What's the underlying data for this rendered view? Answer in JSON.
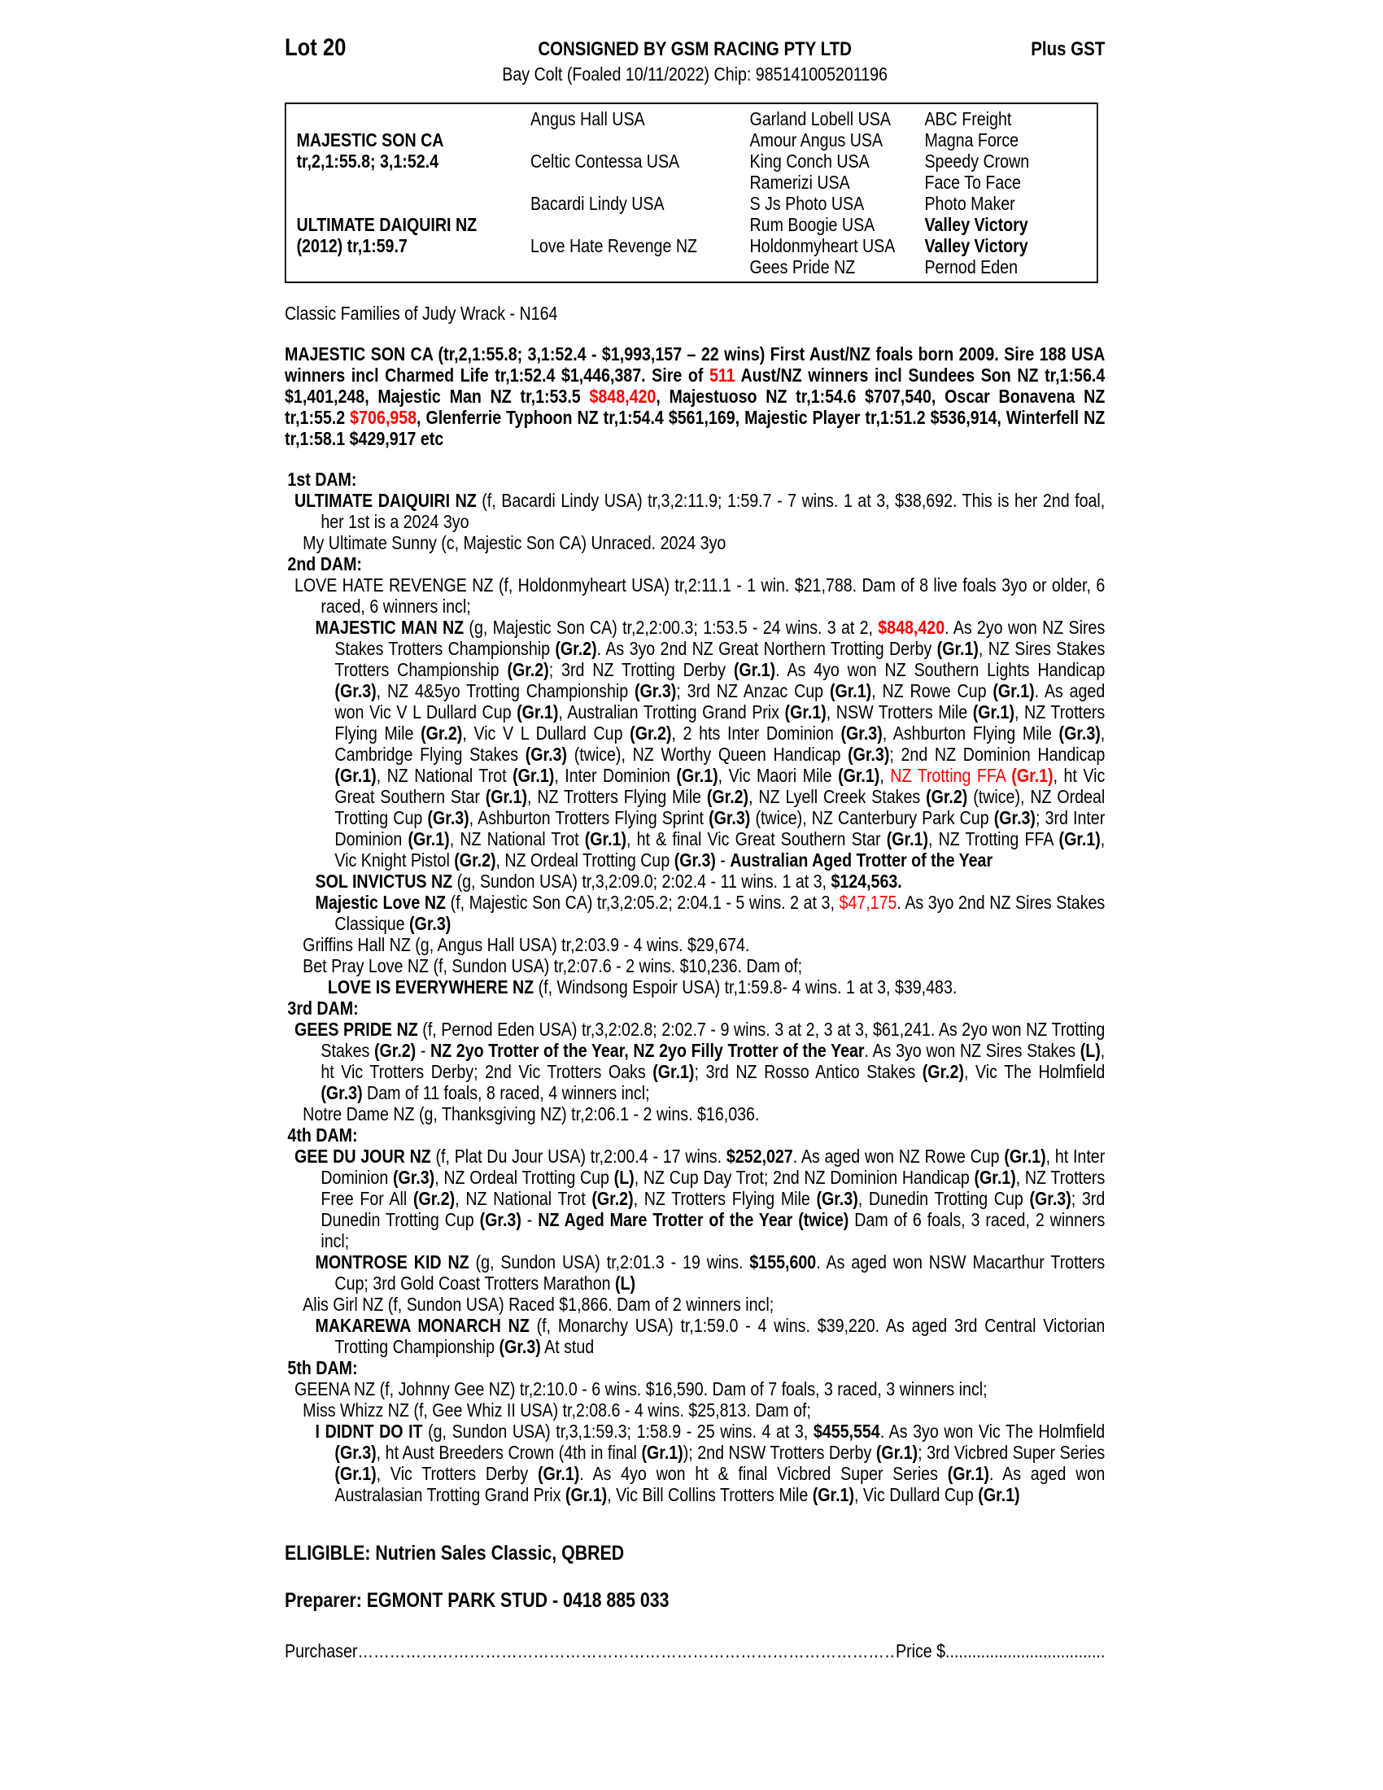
{
  "colors": {
    "accent_red": "#ff0000",
    "text": "#000000",
    "background": "#ffffff"
  },
  "page": {
    "lot": "Lot 20",
    "consigned": "CONSIGNED BY GSM RACING PTY LTD",
    "gst": "Plus GST",
    "subtitle": "Bay Colt (Foaled 10/11/2022) Chip: 985141005201196",
    "eligible": "ELIGIBLE: Nutrien Sales Classic, QBRED",
    "preparer": "Preparer: EGMONT PARK STUD - 0418 885 033",
    "purchaser_label": "Purchaser",
    "purchaser_dots": "……………………………………………………………………………………………………………………",
    "price_label": "Price $",
    "price_dots": "........................................................................"
  },
  "pedigree_table": {
    "rows": [
      {
        "c1": "",
        "b1": false,
        "c2": "Angus Hall USA",
        "c3": "Garland Lobell USA",
        "c4": "ABC Freight",
        "b4": false
      },
      {
        "c1": "MAJESTIC SON CA",
        "b1": true,
        "c2": "",
        "c3": "Amour Angus USA",
        "c4": "Magna Force",
        "b4": false
      },
      {
        "c1": "tr,2,1:55.8; 3,1:52.4",
        "b1": true,
        "c2": "Celtic Contessa USA",
        "c3": "King Conch USA",
        "c4": "Speedy Crown",
        "b4": false
      },
      {
        "c1": "",
        "b1": false,
        "c2": "",
        "c3": "Ramerizi USA",
        "c4": "Face To Face",
        "b4": false
      },
      {
        "c1": "",
        "b1": false,
        "c2": "Bacardi Lindy USA",
        "c3": "S Js Photo USA",
        "c4": "Photo Maker",
        "b4": false
      },
      {
        "c1": "ULTIMATE DAIQUIRI NZ",
        "b1": true,
        "c2": "",
        "c3": "Rum Boogie USA",
        "c4": "Valley Victory",
        "b4": true
      },
      {
        "c1": "(2012) tr,1:59.7",
        "b1": true,
        "c2": "Love Hate Revenge NZ",
        "c3": "Holdonmyheart USA",
        "c4": "Valley Victory",
        "b4": true
      },
      {
        "c1": "",
        "b1": false,
        "c2": "",
        "c3": "Gees Pride NZ",
        "c4": "Pernod Eden",
        "b4": false
      }
    ]
  },
  "paragraphs": [
    {
      "name": "family-line",
      "level": "p0",
      "gap": true,
      "segments": [
        [
          "Classic Families of Judy Wrack - N164",
          "n"
        ]
      ]
    },
    {
      "name": "sire-summary",
      "level": "p0",
      "gap": true,
      "segments": [
        [
          "MAJESTIC SON CA (tr,2,1:55.8; 3,1:52.4 - $1,993,157 – 22 wins) First Aust/NZ foals born 2009. Sire 188 USA winners incl Charmed Life tr,1:52.4 $1,446,387. Sire of ",
          "b"
        ],
        [
          "511",
          "br"
        ],
        [
          " Aust/NZ winners incl Sundees Son NZ tr,1:56.4 $1,401,248, Majestic Man NZ tr,1:53.5 ",
          "b"
        ],
        [
          "$848,420",
          "br"
        ],
        [
          ", Majestuoso NZ tr,1:54.6 $707,540, Oscar Bonavena NZ tr,1:55.2 ",
          "b"
        ],
        [
          "$706,958",
          "br"
        ],
        [
          ", Glenferrie Typhoon NZ tr,1:54.4 $561,169, Majestic Player tr,1:51.2 $536,914, Winterfell NZ tr,1:58.1 $429,917 etc",
          "b"
        ]
      ]
    },
    {
      "name": "heading-1st-dam",
      "level": "h",
      "gap": true,
      "segments": [
        [
          "1st DAM:",
          "b"
        ]
      ]
    },
    {
      "name": "ultimate-daiquiri",
      "level": "lv0",
      "gap": false,
      "segments": [
        [
          "ULTIMATE DAIQUIRI NZ",
          "b"
        ],
        [
          " (f, Bacardi Lindy USA) tr,3,2:11.9; 1:59.7 - 7 wins. 1 at 3, $38,692. This is her 2nd foal, her 1st is a 2024 3yo",
          "n"
        ]
      ]
    },
    {
      "name": "my-ultimate-sunny",
      "level": "lv1",
      "gap": false,
      "segments": [
        [
          "My Ultimate Sunny (c, Majestic Son CA) Unraced. 2024 3yo",
          "n"
        ]
      ]
    },
    {
      "name": "heading-2nd-dam",
      "level": "h",
      "gap": false,
      "segments": [
        [
          "2nd DAM:",
          "b"
        ]
      ]
    },
    {
      "name": "love-hate-revenge",
      "level": "lv0",
      "gap": false,
      "segments": [
        [
          "LOVE HATE REVENGE NZ (f, Holdonmyheart USA) tr,2:11.1 - 1 win. $21,788. Dam of 8 live foals 3yo or older, 6 raced, 6 winners incl;",
          "n"
        ]
      ]
    },
    {
      "name": "majestic-man",
      "level": "lv2",
      "gap": false,
      "segments": [
        [
          "MAJESTIC MAN NZ",
          "b"
        ],
        [
          " (g, Majestic Son CA) tr,2,2:00.3; 1:53.5 - 24 wins. 3 at 2, ",
          "n"
        ],
        [
          "$848,420",
          "br"
        ],
        [
          ". As 2yo won NZ Sires Stakes Trotters Championship ",
          "n"
        ],
        [
          "(Gr.2)",
          "b"
        ],
        [
          ". As 3yo 2nd NZ Great Northern Trotting Derby ",
          "n"
        ],
        [
          "(Gr.1)",
          "b"
        ],
        [
          ", NZ Sires Stakes Trotters Championship ",
          "n"
        ],
        [
          "(Gr.2)",
          "b"
        ],
        [
          "; 3rd NZ Trotting Derby ",
          "n"
        ],
        [
          "(Gr.1)",
          "b"
        ],
        [
          ". As 4yo won NZ Southern Lights Handicap ",
          "n"
        ],
        [
          "(Gr.3)",
          "b"
        ],
        [
          ", NZ 4&5yo Trotting Championship ",
          "n"
        ],
        [
          "(Gr.3)",
          "b"
        ],
        [
          "; 3rd NZ Anzac Cup ",
          "n"
        ],
        [
          "(Gr.1)",
          "b"
        ],
        [
          ", NZ Rowe Cup ",
          "n"
        ],
        [
          "(Gr.1)",
          "b"
        ],
        [
          ". As aged won Vic V L Dullard Cup ",
          "n"
        ],
        [
          "(Gr.1)",
          "b"
        ],
        [
          ", Australian Trotting Grand Prix ",
          "n"
        ],
        [
          "(Gr.1)",
          "b"
        ],
        [
          ", NSW Trotters Mile ",
          "n"
        ],
        [
          "(Gr.1)",
          "b"
        ],
        [
          ", NZ Trotters Flying Mile ",
          "n"
        ],
        [
          "(Gr.2)",
          "b"
        ],
        [
          ", Vic V L Dullard Cup ",
          "n"
        ],
        [
          "(Gr.2)",
          "b"
        ],
        [
          ", 2 hts Inter Dominion ",
          "n"
        ],
        [
          "(Gr.3)",
          "b"
        ],
        [
          ", Ashburton Flying Mile ",
          "n"
        ],
        [
          "(Gr.3)",
          "b"
        ],
        [
          ", Cambridge Flying Stakes ",
          "n"
        ],
        [
          "(Gr.3)",
          "b"
        ],
        [
          " (twice), NZ Worthy Queen Handicap ",
          "n"
        ],
        [
          "(Gr.3)",
          "b"
        ],
        [
          "; 2nd NZ Dominion Handicap ",
          "n"
        ],
        [
          "(Gr.1)",
          "b"
        ],
        [
          ", NZ National Trot ",
          "n"
        ],
        [
          "(Gr.1)",
          "b"
        ],
        [
          ", Inter Dominion ",
          "n"
        ],
        [
          "(Gr.1)",
          "b"
        ],
        [
          ", Vic Maori Mile ",
          "n"
        ],
        [
          "(Gr.1)",
          "b"
        ],
        [
          ", ",
          "n"
        ],
        [
          "NZ Trotting FFA ",
          "r"
        ],
        [
          "(Gr.1)",
          "br"
        ],
        [
          ", ht Vic Great Southern Star ",
          "n"
        ],
        [
          "(Gr.1)",
          "b"
        ],
        [
          ", NZ Trotters Flying Mile ",
          "n"
        ],
        [
          "(Gr.2)",
          "b"
        ],
        [
          ", NZ Lyell Creek Stakes ",
          "n"
        ],
        [
          "(Gr.2)",
          "b"
        ],
        [
          " (twice), NZ Ordeal Trotting Cup ",
          "n"
        ],
        [
          "(Gr.3)",
          "b"
        ],
        [
          ", Ashburton Trotters Flying Sprint ",
          "n"
        ],
        [
          "(Gr.3)",
          "b"
        ],
        [
          " (twice), NZ Canterbury Park Cup ",
          "n"
        ],
        [
          "(Gr.3)",
          "b"
        ],
        [
          "; 3rd Inter Dominion ",
          "n"
        ],
        [
          "(Gr.1)",
          "b"
        ],
        [
          ", NZ National Trot ",
          "n"
        ],
        [
          "(Gr.1)",
          "b"
        ],
        [
          ", ht & final Vic Great Southern Star ",
          "n"
        ],
        [
          "(Gr.1)",
          "b"
        ],
        [
          ", NZ Trotting FFA ",
          "n"
        ],
        [
          "(Gr.1)",
          "b"
        ],
        [
          ", Vic Knight Pistol ",
          "n"
        ],
        [
          "(Gr.2)",
          "b"
        ],
        [
          ", NZ Ordeal Trotting Cup ",
          "n"
        ],
        [
          "(Gr.3)",
          "b"
        ],
        [
          " - ",
          "n"
        ],
        [
          "Australian Aged Trotter of the Year",
          "b"
        ]
      ]
    },
    {
      "name": "sol-invictus",
      "level": "lv2",
      "gap": false,
      "segments": [
        [
          "SOL INVICTUS NZ",
          "b"
        ],
        [
          " (g, Sundon USA) tr,3,2:09.0; 2:02.4 - 11 wins. 1 at 3, ",
          "n"
        ],
        [
          "$124,563.",
          "b"
        ]
      ]
    },
    {
      "name": "majestic-love",
      "level": "lv2",
      "gap": false,
      "segments": [
        [
          "Majestic Love NZ",
          "b"
        ],
        [
          " (f, Majestic Son CA) tr,3,2:05.2; 2:04.1 - 5 wins. 2 at 3, ",
          "n"
        ],
        [
          "$47,175",
          "r"
        ],
        [
          ". As 3yo 2nd NZ Sires Stakes Classique ",
          "n"
        ],
        [
          "(Gr.3)",
          "b"
        ]
      ]
    },
    {
      "name": "griffins-hall",
      "level": "lv1",
      "gap": false,
      "segments": [
        [
          "Griffins Hall NZ (g, Angus Hall USA) tr,2:03.9 - 4 wins. $29,674.",
          "n"
        ]
      ]
    },
    {
      "name": "bet-pray-love",
      "level": "lv1",
      "gap": false,
      "segments": [
        [
          "Bet Pray Love NZ (f, Sundon USA) tr,2:07.6 - 2 wins. $10,236. Dam of;",
          "n"
        ]
      ]
    },
    {
      "name": "love-is-everywhere",
      "level": "lv3",
      "gap": false,
      "segments": [
        [
          "LOVE IS EVERYWHERE NZ",
          "b"
        ],
        [
          " (f, Windsong Espoir USA) tr,1:59.8- 4 wins. 1 at 3, $39,483.",
          "n"
        ]
      ]
    },
    {
      "name": "heading-3rd-dam",
      "level": "h",
      "gap": false,
      "segments": [
        [
          "3rd DAM:",
          "b"
        ]
      ]
    },
    {
      "name": "gees-pride",
      "level": "lv0",
      "gap": false,
      "segments": [
        [
          "GEES PRIDE NZ",
          "b"
        ],
        [
          " (f, Pernod Eden USA) tr,3,2:02.8; 2:02.7 - 9 wins. 3 at 2, 3 at 3, $61,241. As 2yo won NZ Trotting Stakes ",
          "n"
        ],
        [
          "(Gr.2)",
          "b"
        ],
        [
          " - ",
          "n"
        ],
        [
          "NZ 2yo Trotter of the Year, NZ 2yo Filly Trotter of the Year",
          "b"
        ],
        [
          ". As 3yo won NZ Sires Stakes ",
          "n"
        ],
        [
          "(L)",
          "b"
        ],
        [
          ", ht Vic Trotters Derby; 2nd Vic Trotters Oaks ",
          "n"
        ],
        [
          "(Gr.1)",
          "b"
        ],
        [
          "; 3rd NZ Rosso Antico Stakes ",
          "n"
        ],
        [
          "(Gr.2)",
          "b"
        ],
        [
          ", Vic The Holmfield ",
          "n"
        ],
        [
          "(Gr.3)",
          "b"
        ],
        [
          " Dam of 11 foals, 8 raced, 4 winners incl;",
          "n"
        ]
      ]
    },
    {
      "name": "notre-dame",
      "level": "lv1",
      "gap": false,
      "segments": [
        [
          "Notre Dame NZ (g, Thanksgiving NZ) tr,2:06.1 - 2 wins. $16,036.",
          "n"
        ]
      ]
    },
    {
      "name": "heading-4th-dam",
      "level": "h",
      "gap": false,
      "segments": [
        [
          "4th DAM:",
          "b"
        ]
      ]
    },
    {
      "name": "gee-du-jour",
      "level": "lv0",
      "gap": false,
      "segments": [
        [
          "GEE DU JOUR NZ",
          "b"
        ],
        [
          " (f, Plat Du Jour USA) tr,2:00.4 - 17 wins. ",
          "n"
        ],
        [
          "$252,027",
          "b"
        ],
        [
          ". As aged won NZ Rowe Cup ",
          "n"
        ],
        [
          "(Gr.1)",
          "b"
        ],
        [
          ", ht Inter Dominion ",
          "n"
        ],
        [
          "(Gr.3)",
          "b"
        ],
        [
          ", NZ Ordeal Trotting Cup ",
          "n"
        ],
        [
          "(L)",
          "b"
        ],
        [
          ", NZ Cup Day Trot; 2nd NZ Dominion Handicap ",
          "n"
        ],
        [
          "(Gr.1)",
          "b"
        ],
        [
          ", NZ Trotters Free For All ",
          "n"
        ],
        [
          "(Gr.2)",
          "b"
        ],
        [
          ", NZ National Trot ",
          "n"
        ],
        [
          "(Gr.2)",
          "b"
        ],
        [
          ", NZ Trotters Flying Mile ",
          "n"
        ],
        [
          "(Gr.3)",
          "b"
        ],
        [
          ", Dunedin Trotting Cup ",
          "n"
        ],
        [
          "(Gr.3)",
          "b"
        ],
        [
          "; 3rd Dunedin Trotting Cup ",
          "n"
        ],
        [
          "(Gr.3)",
          "b"
        ],
        [
          " - ",
          "n"
        ],
        [
          "NZ Aged Mare Trotter of the Year (twice)",
          "b"
        ],
        [
          " Dam of 6 foals, 3 raced, 2 winners incl;",
          "n"
        ]
      ]
    },
    {
      "name": "montrose-kid",
      "level": "lv2",
      "gap": false,
      "segments": [
        [
          "MONTROSE KID NZ",
          "b"
        ],
        [
          " (g, Sundon USA) tr,2:01.3 - 19 wins. ",
          "n"
        ],
        [
          "$155,600",
          "b"
        ],
        [
          ". As aged won NSW Macarthur Trotters Cup; 3rd Gold Coast Trotters Marathon ",
          "n"
        ],
        [
          "(L)",
          "b"
        ]
      ]
    },
    {
      "name": "alis-girl",
      "level": "lv1",
      "gap": false,
      "segments": [
        [
          "Alis Girl NZ (f, Sundon USA) Raced $1,866. Dam of 2 winners incl;",
          "n"
        ]
      ]
    },
    {
      "name": "makarewa-monarch",
      "level": "lv2",
      "gap": false,
      "segments": [
        [
          "MAKAREWA MONARCH NZ",
          "b"
        ],
        [
          " (f, Monarchy USA) tr,1:59.0 - 4 wins. $39,220. As aged 3rd Central Victorian Trotting Championship ",
          "n"
        ],
        [
          "(Gr.3)",
          "b"
        ],
        [
          " At stud",
          "n"
        ]
      ]
    },
    {
      "name": "heading-5th-dam",
      "level": "h",
      "gap": false,
      "segments": [
        [
          "5th DAM:",
          "b"
        ]
      ]
    },
    {
      "name": "geena",
      "level": "lv0",
      "gap": false,
      "segments": [
        [
          "GEENA NZ (f, Johnny Gee NZ) tr,2:10.0 - 6 wins. $16,590. Dam of 7 foals, 3 raced, 3 winners incl;",
          "n"
        ]
      ]
    },
    {
      "name": "miss-whizz",
      "level": "lv1",
      "gap": false,
      "segments": [
        [
          "Miss Whizz NZ (f, Gee Whiz II USA) tr,2:08.6 - 4 wins. $25,813. Dam of;",
          "n"
        ]
      ]
    },
    {
      "name": "i-didnt-do-it",
      "level": "lv2",
      "gap": false,
      "segments": [
        [
          "I DIDNT DO IT",
          "b"
        ],
        [
          " (g, Sundon USA) tr,3,1:59.3; 1:58.9 - 25 wins. 4 at 3, ",
          "n"
        ],
        [
          "$455,554",
          "b"
        ],
        [
          ". As 3yo won Vic The Holmfield ",
          "n"
        ],
        [
          "(Gr.3)",
          "b"
        ],
        [
          ", ht Aust Breeders Crown (4th in final ",
          "n"
        ],
        [
          "(Gr.1)",
          "b"
        ],
        [
          "); 2nd NSW Trotters Derby ",
          "n"
        ],
        [
          "(Gr.1)",
          "b"
        ],
        [
          "; 3rd Vicbred Super Series ",
          "n"
        ],
        [
          "(Gr.1)",
          "b"
        ],
        [
          ", Vic Trotters Derby ",
          "n"
        ],
        [
          "(Gr.1)",
          "b"
        ],
        [
          ". As 4yo won ht & final Vicbred Super Series ",
          "n"
        ],
        [
          "(Gr.1)",
          "b"
        ],
        [
          ". As aged won Australasian Trotting Grand Prix ",
          "n"
        ],
        [
          "(Gr.1)",
          "b"
        ],
        [
          ", Vic Bill Collins Trotters Mile ",
          "n"
        ],
        [
          "(Gr.1)",
          "b"
        ],
        [
          ", Vic Dullard Cup ",
          "n"
        ],
        [
          "(Gr.1)",
          "b"
        ]
      ]
    }
  ]
}
